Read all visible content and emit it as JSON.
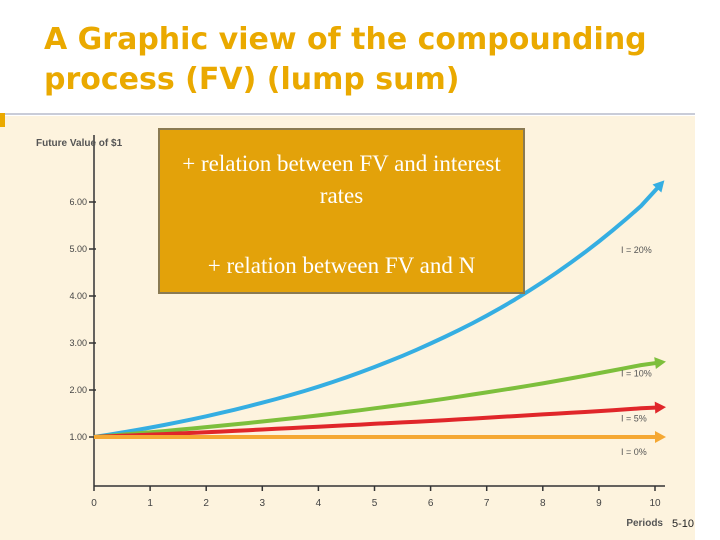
{
  "slide": {
    "title": "A Graphic view of the compounding process (FV) (lump sum)",
    "slide_number": "5-10"
  },
  "callout": {
    "line1": "+ relation between FV and interest rates",
    "line2": "+ relation between FV and N"
  },
  "chart_data": {
    "type": "line",
    "ylabel": "Future Value of $1",
    "xlabel": "Periods",
    "xlim": [
      0,
      10
    ],
    "ylim": [
      0,
      6.5
    ],
    "x_ticks": [
      "0",
      "1",
      "2",
      "3",
      "4",
      "5",
      "6",
      "7",
      "8",
      "9",
      "10"
    ],
    "y_ticks": [
      "1.00",
      "2.00",
      "3.00",
      "4.00",
      "5.00",
      "6.00"
    ],
    "x": [
      0,
      1,
      2,
      3,
      4,
      5,
      6,
      7,
      8,
      9,
      10
    ],
    "series": [
      {
        "name": "I = 20%",
        "color": "#35aee2",
        "values": [
          1.0,
          1.2,
          1.44,
          1.73,
          2.07,
          2.49,
          2.99,
          3.58,
          4.3,
          5.16,
          6.19
        ]
      },
      {
        "name": "I = 10%",
        "color": "#7dbf3c",
        "values": [
          1.0,
          1.1,
          1.21,
          1.33,
          1.46,
          1.61,
          1.77,
          1.95,
          2.14,
          2.36,
          2.59
        ]
      },
      {
        "name": "I = 5%",
        "color": "#e0262a",
        "values": [
          1.0,
          1.05,
          1.1,
          1.16,
          1.22,
          1.28,
          1.34,
          1.41,
          1.48,
          1.55,
          1.63
        ]
      },
      {
        "name": "I = 0%",
        "color": "#f5a833",
        "values": [
          1.0,
          1.0,
          1.0,
          1.0,
          1.0,
          1.0,
          1.0,
          1.0,
          1.0,
          1.0,
          1.0
        ]
      }
    ]
  }
}
